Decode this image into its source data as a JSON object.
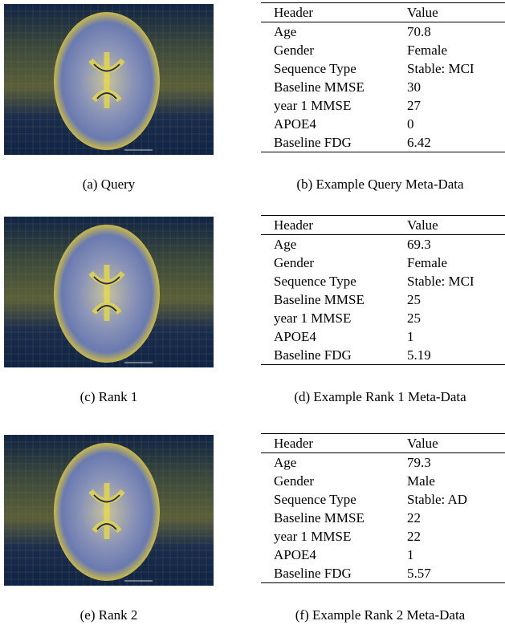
{
  "panels": [
    {
      "image_caption": "(a) Query",
      "table": {
        "columns": [
          "Header",
          "Value"
        ],
        "rows": [
          [
            "Age",
            "70.8"
          ],
          [
            "Gender",
            "Female"
          ],
          [
            "Sequence Type",
            "Stable: MCI"
          ],
          [
            "Baseline MMSE",
            "30"
          ],
          [
            "year 1 MMSE",
            "27"
          ],
          [
            "APOE4",
            "0"
          ],
          [
            "Baseline FDG",
            "6.42"
          ]
        ]
      },
      "table_caption": "(b) Example Query Meta-Data"
    },
    {
      "image_caption": "(c) Rank 1",
      "table": {
        "columns": [
          "Header",
          "Value"
        ],
        "rows": [
          [
            "Age",
            "69.3"
          ],
          [
            "Gender",
            "Female"
          ],
          [
            "Sequence Type",
            "Stable: MCI"
          ],
          [
            "Baseline MMSE",
            "25"
          ],
          [
            "year 1 MMSE",
            "25"
          ],
          [
            "APOE4",
            "1"
          ],
          [
            "Baseline FDG",
            "5.19"
          ]
        ]
      },
      "table_caption": "(d) Example Rank 1 Meta-Data"
    },
    {
      "image_caption": "(e) Rank 2",
      "table": {
        "columns": [
          "Header",
          "Value"
        ],
        "rows": [
          [
            "Age",
            "79.3"
          ],
          [
            "Gender",
            "Male"
          ],
          [
            "Sequence Type",
            "Stable: AD"
          ],
          [
            "Baseline MMSE",
            "22"
          ],
          [
            "year 1 MMSE",
            "22"
          ],
          [
            "APOE4",
            "1"
          ],
          [
            "Baseline FDG",
            "5.57"
          ]
        ]
      },
      "table_caption": "(f) Example Rank 2 Meta-Data"
    }
  ]
}
